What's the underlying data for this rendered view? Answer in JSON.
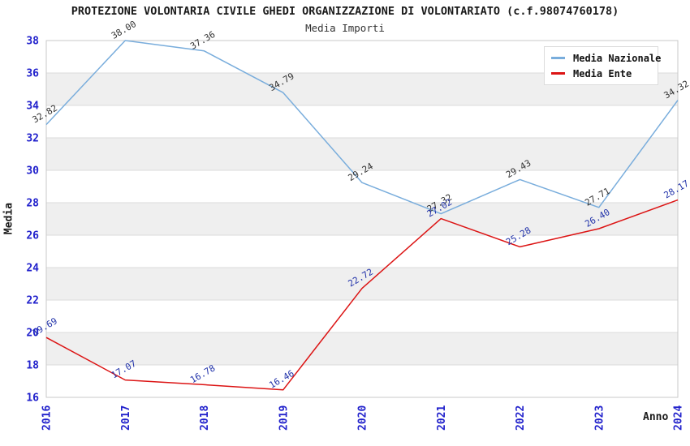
{
  "title": "PROTEZIONE VOLONTARIA CIVILE GHEDI ORGANIZZAZIONE DI VOLONTARIATO (c.f.98074760178)",
  "subtitle": "Media Importi",
  "axes": {
    "y_title": "Media",
    "x_title": "Anno"
  },
  "legend": [
    {
      "label": "Media Nazionale",
      "color": "#79ADDC"
    },
    {
      "label": "Media Ente",
      "color": "#DC1414"
    }
  ],
  "colors": {
    "band_gray": "#EFEFEF",
    "band_white": "#FFFFFF",
    "gridline": "#DBDBDB",
    "plot_border": "#C9C9C9",
    "tick_label": "#2222CC",
    "nazionale_line": "#79ADDC",
    "nazionale_value_label": "#333333",
    "ente_line": "#DC1414",
    "ente_value_label": "#2233AA"
  },
  "chart_data": {
    "type": "line",
    "title": "PROTEZIONE VOLONTARIA CIVILE GHEDI ORGANIZZAZIONE DI VOLONTARIATO (c.f.98074760178)",
    "subtitle": "Media Importi",
    "xlabel": "Anno",
    "ylabel": "Media",
    "x": [
      "2016",
      "2017",
      "2018",
      "2019",
      "2020",
      "2021",
      "2022",
      "2023",
      "2024"
    ],
    "series": [
      {
        "name": "Media Nazionale",
        "color": "#79ADDC",
        "label_color": "#333333",
        "values": [
          32.82,
          38.0,
          37.36,
          34.79,
          29.24,
          27.32,
          29.43,
          27.71,
          34.32
        ]
      },
      {
        "name": "Media Ente",
        "color": "#DC1414",
        "label_color": "#2233AA",
        "values": [
          19.69,
          17.07,
          16.78,
          16.46,
          22.72,
          27.02,
          25.28,
          26.4,
          28.17
        ]
      }
    ],
    "ylim": [
      16,
      38
    ],
    "y_ticks": [
      16,
      18,
      20,
      22,
      24,
      26,
      28,
      30,
      32,
      34,
      36,
      38
    ],
    "grid": true,
    "striped_bands": true,
    "legend_position": "top-right"
  }
}
